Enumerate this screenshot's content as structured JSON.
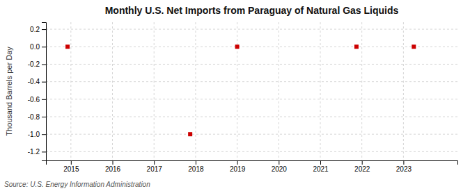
{
  "chart_data": {
    "type": "scatter",
    "title": "Monthly U.S. Net Imports from Paraguay of Natural Gas Liquids",
    "y_label": "Thousand Barrels per Day",
    "source": "Source: U.S. Energy Information Administration",
    "x": [
      2014.92,
      2017.87,
      2019.0,
      2021.87,
      2023.25
    ],
    "values": [
      0.0,
      -1.0,
      0.0,
      0.0,
      0.0
    ],
    "color": "#cc0000",
    "marker": "square",
    "xlim": [
      2014.4,
      2024.3
    ],
    "ylim": [
      -1.3,
      0.28
    ],
    "xticks": [
      2015,
      2016,
      2017,
      2018,
      2019,
      2020,
      2021,
      2022,
      2023
    ],
    "yticks": [
      0.2,
      {
        "value": 0.0,
        "label": "0.0"
      },
      -0.2,
      -0.4,
      -0.6,
      -0.8,
      {
        "value": -1.0,
        "label": "-1.0"
      },
      -1.2
    ],
    "grid": true
  }
}
